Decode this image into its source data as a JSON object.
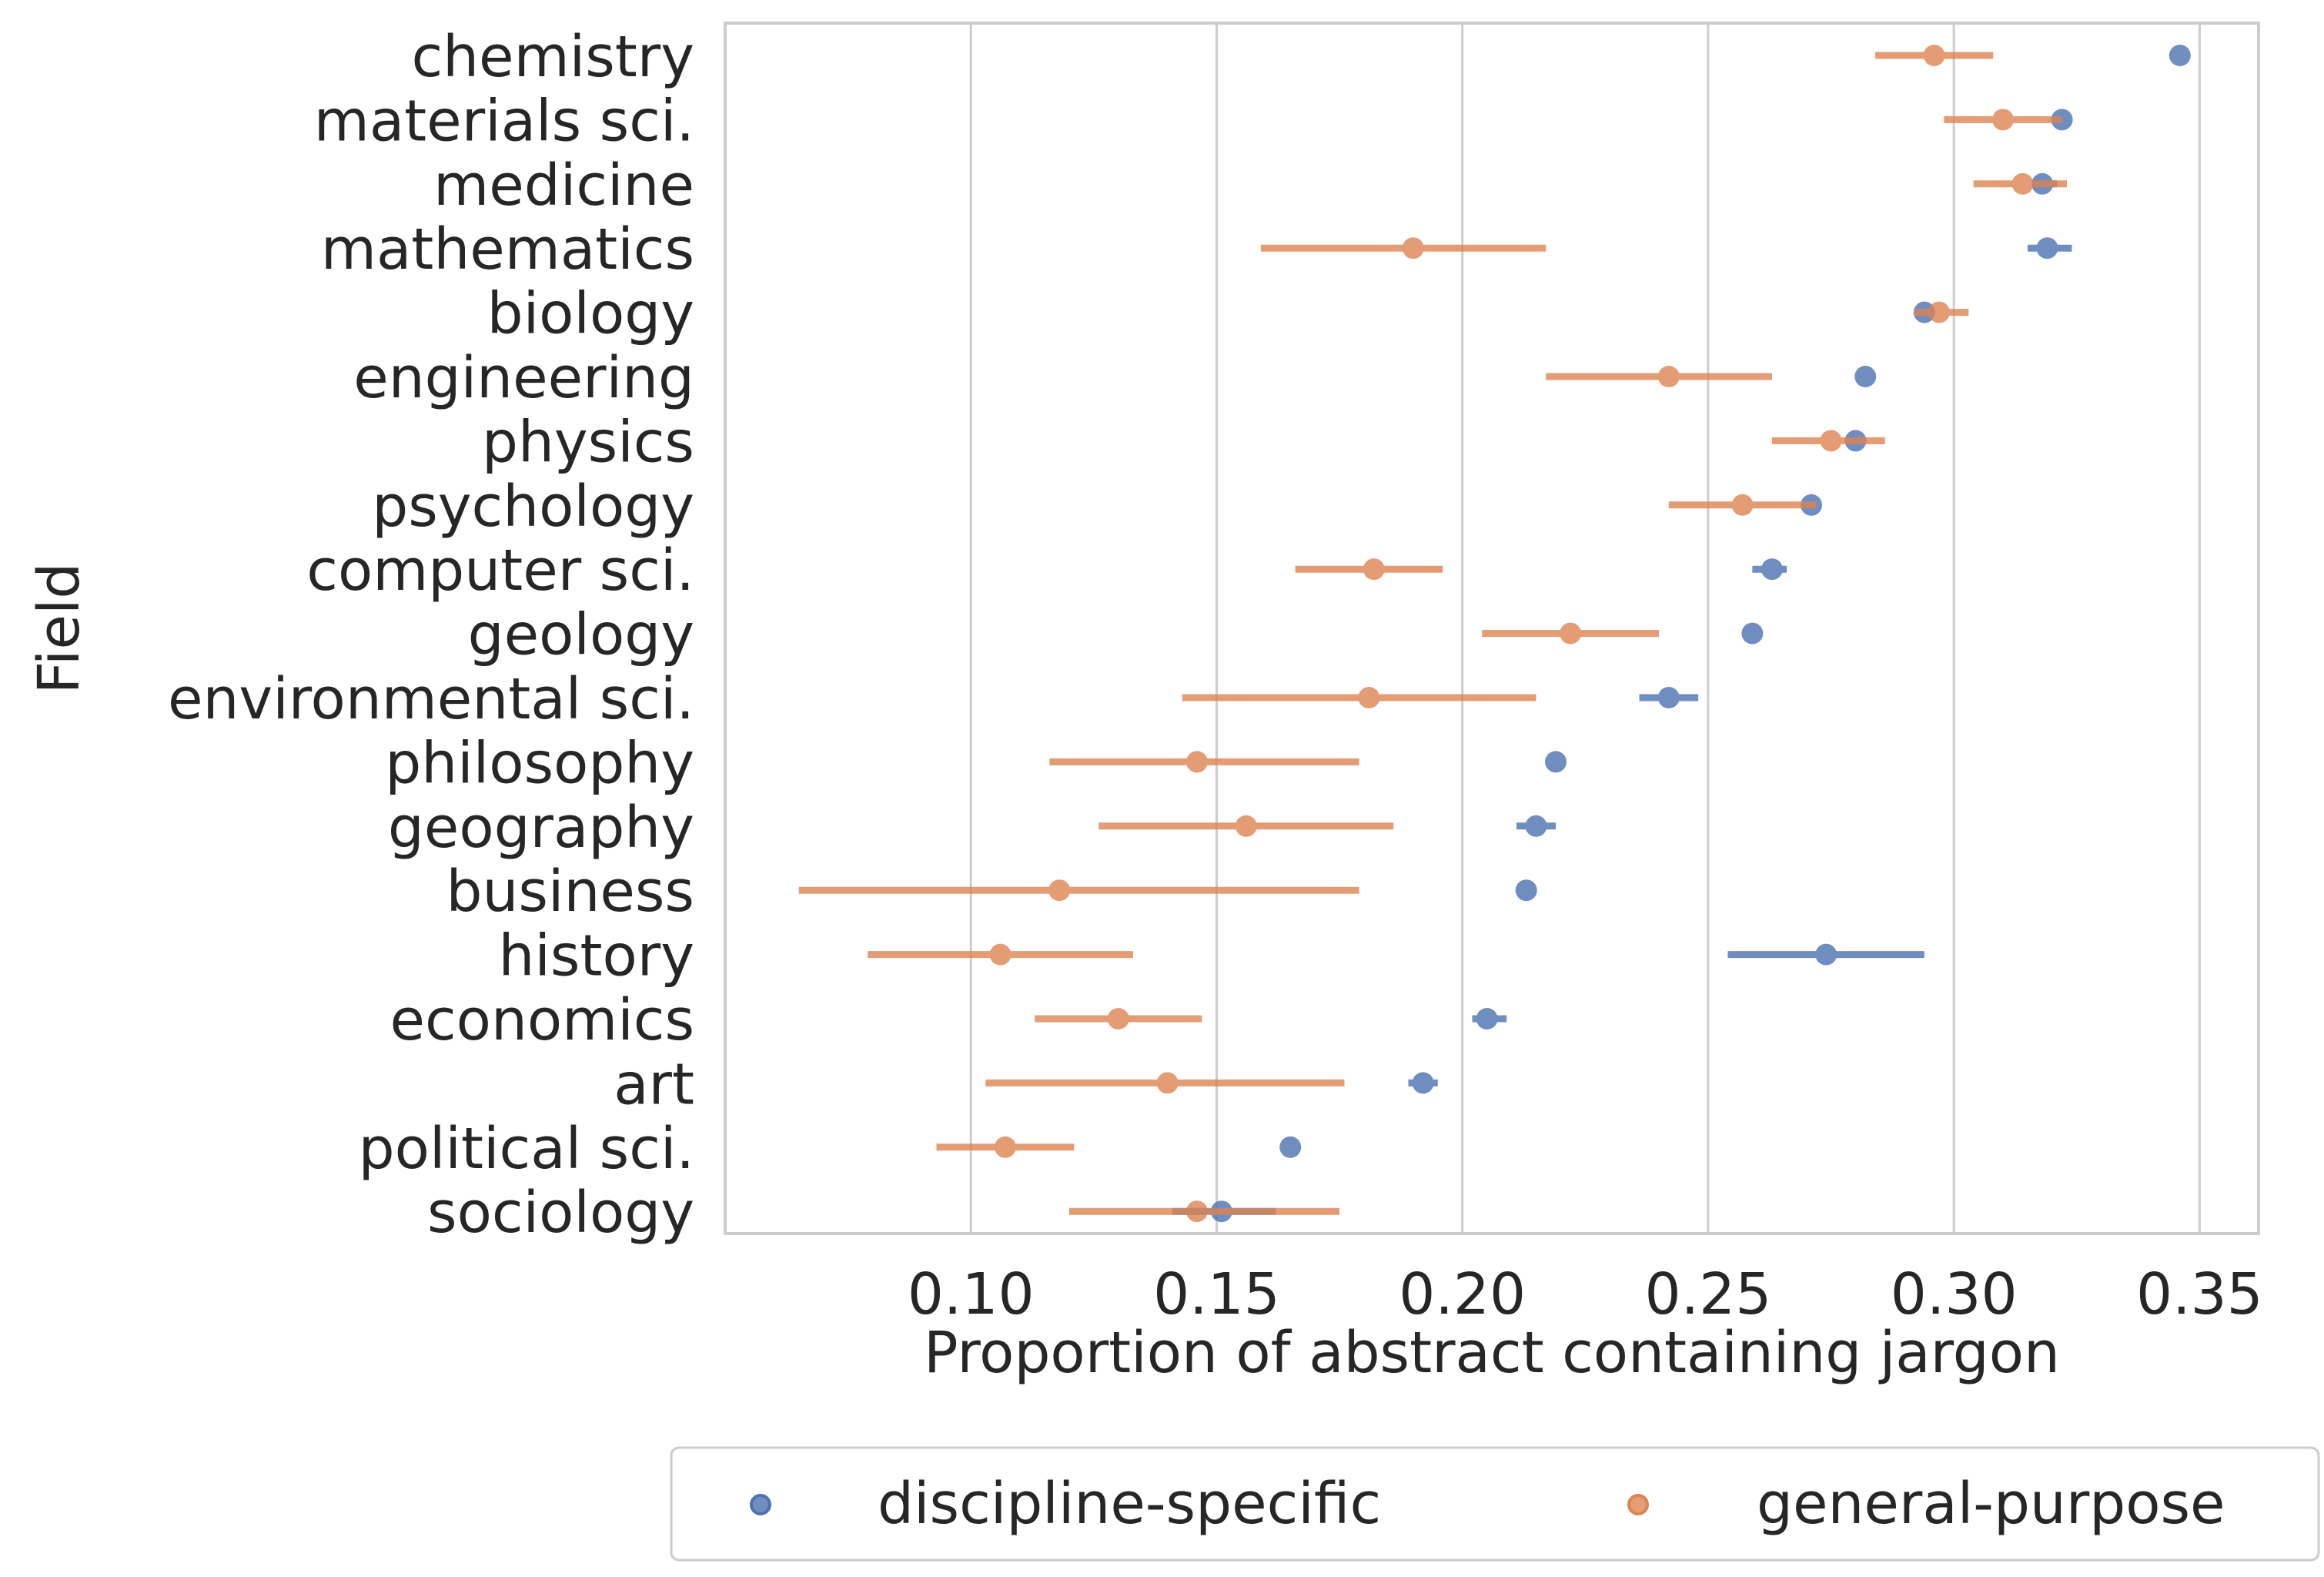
{
  "chart_data": {
    "type": "dot-errorbar",
    "title": "",
    "xlabel": "Proportion of abstract containing jargon",
    "ylabel": "Field",
    "xlim": [
      0.05,
      0.362
    ],
    "xticks": [
      0.1,
      0.15,
      0.2,
      0.25,
      0.3,
      0.35
    ],
    "xtick_labels": [
      "0.10",
      "0.15",
      "0.20",
      "0.25",
      "0.30",
      "0.35"
    ],
    "grid": "vertical",
    "legend_position": "bottom-outside",
    "categories": [
      "chemistry",
      "materials sci.",
      "medicine",
      "mathematics",
      "biology",
      "engineering",
      "physics",
      "psychology",
      "computer sci.",
      "geology",
      "environmental sci.",
      "philosophy",
      "geography",
      "business",
      "history",
      "economics",
      "art",
      "political sci.",
      "sociology"
    ],
    "series": [
      {
        "name": "discipline-specific",
        "color": "#4c72b0",
        "values": [
          0.346,
          0.322,
          0.318,
          0.319,
          0.294,
          0.282,
          0.28,
          0.271,
          0.263,
          0.259,
          0.242,
          0.219,
          0.215,
          0.213,
          0.274,
          0.205,
          0.192,
          0.165,
          0.151
        ],
        "lower": [
          0.346,
          0.322,
          0.316,
          0.315,
          0.293,
          0.281,
          0.279,
          0.27,
          0.259,
          0.258,
          0.236,
          0.218,
          0.211,
          0.212,
          0.254,
          0.202,
          0.189,
          0.165,
          0.141
        ],
        "upper": [
          0.346,
          0.322,
          0.321,
          0.324,
          0.295,
          0.284,
          0.282,
          0.273,
          0.266,
          0.26,
          0.248,
          0.221,
          0.219,
          0.215,
          0.294,
          0.209,
          0.195,
          0.166,
          0.162
        ]
      },
      {
        "name": "general-purpose",
        "color": "#dd8452",
        "values": [
          0.296,
          0.31,
          0.314,
          0.19,
          0.297,
          0.242,
          0.275,
          0.257,
          0.182,
          0.222,
          0.181,
          0.146,
          0.156,
          0.118,
          0.106,
          0.13,
          0.14,
          0.107,
          0.146
        ],
        "lower": [
          0.284,
          0.298,
          0.304,
          0.159,
          0.292,
          0.217,
          0.263,
          0.242,
          0.166,
          0.204,
          0.143,
          0.116,
          0.126,
          0.065,
          0.079,
          0.113,
          0.103,
          0.093,
          0.12
        ],
        "upper": [
          0.308,
          0.322,
          0.323,
          0.217,
          0.303,
          0.263,
          0.286,
          0.272,
          0.196,
          0.24,
          0.215,
          0.179,
          0.186,
          0.179,
          0.133,
          0.147,
          0.176,
          0.121,
          0.175
        ]
      }
    ]
  }
}
